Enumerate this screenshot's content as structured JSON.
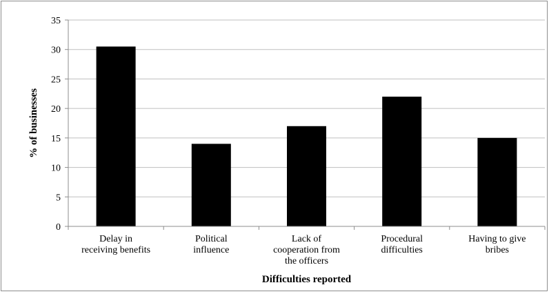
{
  "chart_data": {
    "type": "bar",
    "title": "",
    "xlabel": "Difficulties reported",
    "ylabel": "% of businesses",
    "ylim": [
      0,
      35
    ],
    "yticks": [
      "0",
      "5",
      "10",
      "15",
      "20",
      "25",
      "30",
      "35"
    ],
    "grid": true,
    "legend": "none",
    "categories": [
      [
        "Delay in",
        "receiving benefits"
      ],
      [
        "Political",
        "influence"
      ],
      [
        "Lack of",
        "cooperation from",
        "the officers"
      ],
      [
        "Procedural",
        "difficulties"
      ],
      [
        "Having to give",
        "bribes"
      ]
    ],
    "values": [
      30.5,
      14,
      17,
      22,
      15
    ],
    "bar_color": "#000000",
    "grid_color": "#bfbfbf"
  }
}
